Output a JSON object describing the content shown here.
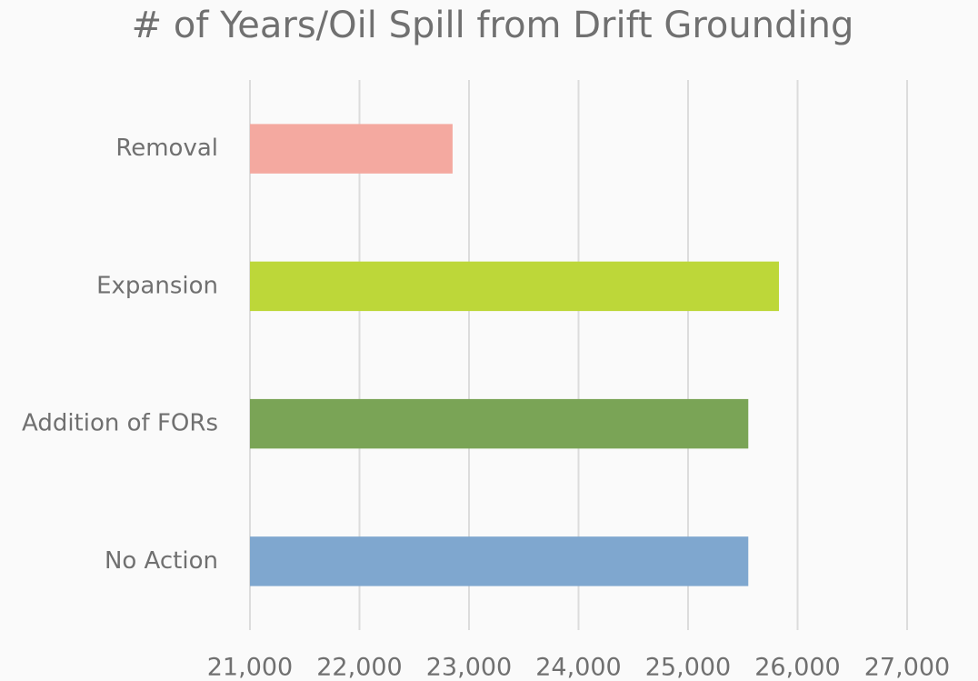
{
  "chart_data": {
    "type": "hbar",
    "title": "# of Years/Oil Spill from Drift Grounding",
    "categories": [
      "Removal",
      "Expansion",
      "Addition of FORs",
      "No Action"
    ],
    "values": [
      22850,
      25830,
      25550,
      25550
    ],
    "colors": [
      "#f4a9a0",
      "#bdd739",
      "#7aa456",
      "#7fa7cf"
    ],
    "xlim": [
      21000,
      27000
    ],
    "xticks": [
      {
        "value": 21000,
        "label": "21,000"
      },
      {
        "value": 22000,
        "label": "22,000"
      },
      {
        "value": 23000,
        "label": "23,000"
      },
      {
        "value": 24000,
        "label": "24,000"
      },
      {
        "value": 25000,
        "label": "25,000"
      },
      {
        "value": 26000,
        "label": "26,000"
      },
      {
        "value": 27000,
        "label": "27,000"
      }
    ],
    "grid": true
  }
}
